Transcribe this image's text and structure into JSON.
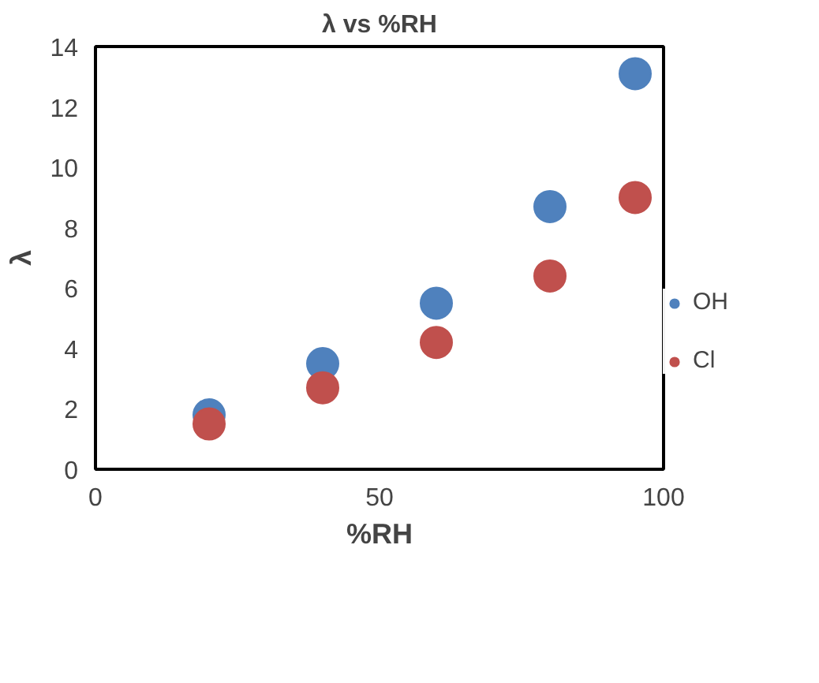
{
  "chart_data": {
    "type": "scatter",
    "title": "λ vs %RH",
    "xlabel": "%RH",
    "ylabel": "λ",
    "x": [
      20,
      40,
      60,
      80,
      95
    ],
    "series": [
      {
        "name": "OH",
        "color": "#4f81bd",
        "values": [
          1.8,
          3.5,
          5.5,
          8.7,
          13.1
        ]
      },
      {
        "name": "Cl",
        "color": "#c0504d",
        "values": [
          1.5,
          2.7,
          4.2,
          6.4,
          9.0
        ]
      }
    ],
    "xlim": [
      0,
      100
    ],
    "xticks": [
      0,
      50,
      100
    ],
    "ylim": [
      0,
      14
    ],
    "yticks": [
      0,
      2,
      4,
      6,
      8,
      10,
      12,
      14
    ],
    "marker": "circle",
    "grid": false,
    "legend": "right"
  }
}
